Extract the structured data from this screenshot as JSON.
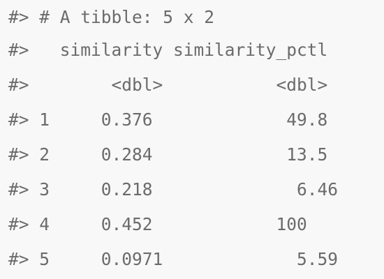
{
  "console": {
    "lines": [
      "#> # A tibble: 5 x 2",
      "#>   similarity similarity_pctl",
      "#>        <dbl>           <dbl>",
      "#> 1     0.376             49.8 ",
      "#> 2     0.284             13.5 ",
      "#> 3     0.218              6.46",
      "#> 4     0.452            100   ",
      "#> 5     0.0971             5.59"
    ]
  }
}
